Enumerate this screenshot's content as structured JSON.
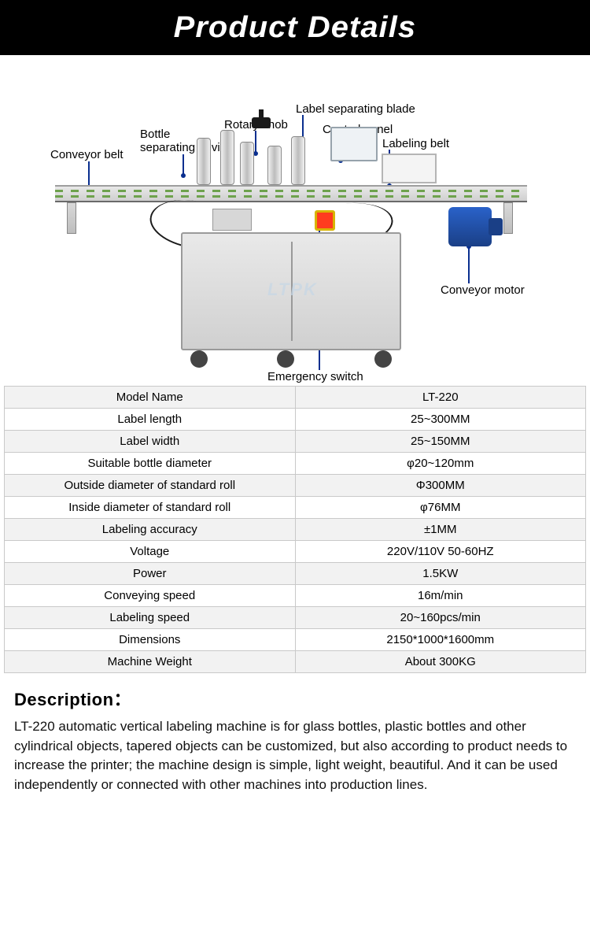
{
  "header": {
    "title": "Product Details"
  },
  "diagram": {
    "watermark": "LTPK",
    "callouts": {
      "conveyor_belt": "Conveyor belt",
      "bottle_sep": "Bottle\nseparating device",
      "rotary_knob": "Rotary knob",
      "label_blade": "Label separating blade",
      "control_panel": "Control panel",
      "labeling_belt": "Labeling belt",
      "conveyor_motor": "Conveyor motor",
      "emergency_switch": "Emergency switch"
    },
    "lead_color": "#0a2f8f"
  },
  "specs": [
    {
      "name": "Model Name",
      "value": "LT-220"
    },
    {
      "name": "Label length",
      "value": "25~300MM"
    },
    {
      "name": "Label width",
      "value": "25~150MM"
    },
    {
      "name": "Suitable bottle diameter",
      "value": "φ20~120mm"
    },
    {
      "name": "Outside diameter of standard roll",
      "value": "Φ300MM"
    },
    {
      "name": "Inside diameter of standard roll",
      "value": "φ76MM"
    },
    {
      "name": "Labeling accuracy",
      "value": "±1MM"
    },
    {
      "name": "Voltage",
      "value": "220V/110V 50-60HZ"
    },
    {
      "name": "Power",
      "value": "1.5KW"
    },
    {
      "name": "Conveying speed",
      "value": "16m/min"
    },
    {
      "name": "Labeling speed",
      "value": "20~160pcs/min"
    },
    {
      "name": "Dimensions",
      "value": "2150*1000*1600mm"
    },
    {
      "name": "Machine Weight",
      "value": "About 300KG"
    }
  ],
  "description": {
    "heading": "Description：",
    "body": "LT-220 automatic vertical labeling machine is for glass bottles, plastic bottles and other cylindrical objects, tapered objects can be customized, but also according to product needs to increase the printer; the machine design is simple, light weight, beautiful. And it can be used independently or connected with other machines into production lines."
  },
  "colors": {
    "header_bg": "#000000",
    "header_text": "#ffffff",
    "table_odd_bg": "#f2f2f2",
    "table_even_bg": "#ffffff",
    "border": "#c9c9c9",
    "eswitch": "#ff3b1f",
    "motor": "#1a3f86"
  }
}
